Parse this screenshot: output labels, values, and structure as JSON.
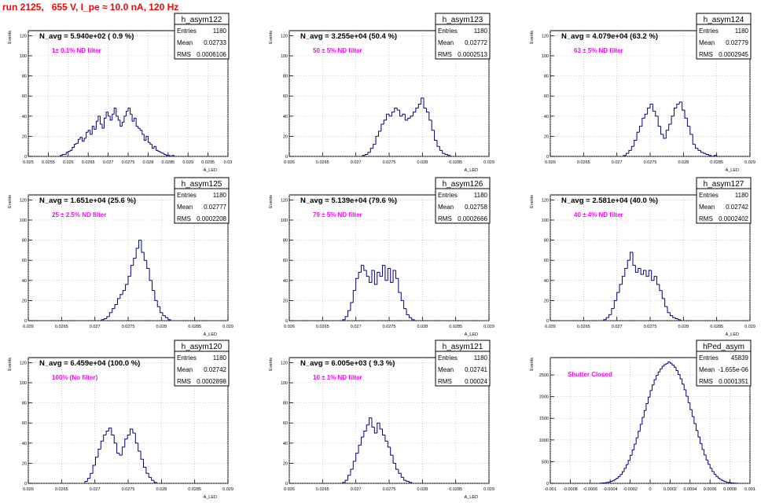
{
  "header": {
    "run_title": "run 2125,   655 V, I_pe ≈ 10.0 nA, 120 Hz",
    "title_color": "#ff0000"
  },
  "colors": {
    "histogram": "#000080",
    "annotation": "#ff00ff",
    "title": "#ff0000",
    "grid": "#b0b0b0"
  },
  "chart_data": [
    {
      "type": "bar",
      "name": "h_asym122",
      "title": "N_avg = 5.940e+02 ( 0.9 %)",
      "annotation": "1± 0.1% ND filter",
      "stats": {
        "Entries": "1180",
        "Mean": "0.02733",
        "RMS": "0.0006106"
      },
      "ylabel": "Events",
      "xlabel": "A_LED",
      "xlim": [
        0.025,
        0.03
      ],
      "ylim": [
        0,
        125
      ],
      "xticks": [
        0.025,
        0.0255,
        0.026,
        0.0265,
        0.027,
        0.0275,
        0.028,
        0.0285,
        0.029,
        0.0295,
        0.03
      ],
      "xtick_labels": [
        "0.025",
        "0.0255",
        "0.026",
        "0.0265",
        "0.027",
        "0.0275",
        "0.028",
        "0.0285",
        "0.029",
        "0.0295",
        "0.03"
      ],
      "yticks": [
        0,
        20,
        40,
        60,
        80,
        100,
        120
      ],
      "hist": {
        "min": 0.0258,
        "bin_width": 5e-05,
        "values": [
          1,
          2,
          2,
          4,
          5,
          6,
          9,
          12,
          13,
          17,
          19,
          15,
          18,
          24,
          26,
          22,
          30,
          27,
          35,
          40,
          32,
          28,
          38,
          44,
          40,
          36,
          42,
          48,
          40,
          36,
          30,
          34,
          40,
          45,
          48,
          42,
          35,
          38,
          30,
          28,
          26,
          22,
          16,
          20,
          14,
          12,
          8,
          10,
          6,
          5,
          4,
          3,
          2,
          1,
          1,
          0,
          1
        ]
      }
    },
    {
      "type": "bar",
      "name": "h_asym123",
      "title": "N_avg = 3.255e+04 (50.4 %)",
      "annotation": "50 ± 5% ND filter",
      "stats": {
        "Entries": "1180",
        "Mean": "0.02772",
        "RMS": "0.0002513"
      },
      "ylabel": "Events",
      "xlabel": "A_LED",
      "xlim": [
        0.026,
        0.029
      ],
      "ylim": [
        0,
        125
      ],
      "xticks": [
        0.026,
        0.0265,
        0.027,
        0.0275,
        0.028,
        0.0285,
        0.029
      ],
      "xtick_labels": [
        "0.026",
        "0.0265",
        "0.027",
        "0.0275",
        "0.028",
        "0.0285",
        "0.029"
      ],
      "yticks": [
        0,
        20,
        40,
        60,
        80,
        100,
        120
      ],
      "hist": {
        "min": 0.0271,
        "bin_width": 4e-05,
        "values": [
          1,
          2,
          4,
          8,
          12,
          20,
          25,
          32,
          36,
          42,
          40,
          44,
          48,
          46,
          40,
          42,
          36,
          38,
          40,
          44,
          48,
          52,
          58,
          48,
          44,
          36,
          26,
          16,
          10,
          6,
          3,
          2,
          1
        ]
      }
    },
    {
      "type": "bar",
      "name": "h_asym124",
      "title": "N_avg = 4.079e+04 (63.2 %)",
      "annotation": "63 ± 5% ND filter",
      "stats": {
        "Entries": "1180",
        "Mean": "0.02779",
        "RMS": "0.0002945"
      },
      "ylabel": "Events",
      "xlabel": "A_LED",
      "xlim": [
        0.026,
        0.029
      ],
      "ylim": [
        0,
        125
      ],
      "xticks": [
        0.026,
        0.0265,
        0.027,
        0.0275,
        0.028,
        0.0285,
        0.029
      ],
      "xtick_labels": [
        "0.026",
        "0.0265",
        "0.027",
        "0.0275",
        "0.028",
        "0.0285",
        "0.029"
      ],
      "yticks": [
        0,
        20,
        40,
        60,
        80,
        100,
        120
      ],
      "hist": {
        "min": 0.0271,
        "bin_width": 4e-05,
        "values": [
          1,
          3,
          6,
          10,
          16,
          24,
          30,
          38,
          42,
          48,
          52,
          45,
          40,
          30,
          22,
          18,
          26,
          32,
          40,
          48,
          52,
          54,
          46,
          38,
          30,
          22,
          12,
          8,
          6,
          4,
          3,
          2,
          1,
          0,
          1
        ]
      }
    },
    {
      "type": "bar",
      "name": "h_asym125",
      "title": "N_avg = 1.651e+04 (25.6 %)",
      "annotation": "25 ± 2.5% ND filter",
      "stats": {
        "Entries": "1180",
        "Mean": "0.02777",
        "RMS": "0.0002208"
      },
      "ylabel": "Events",
      "xlabel": "A_LED",
      "xlim": [
        0.026,
        0.029
      ],
      "ylim": [
        0,
        125
      ],
      "xticks": [
        0.026,
        0.0265,
        0.027,
        0.0275,
        0.028,
        0.0285,
        0.029
      ],
      "xtick_labels": [
        "0.026",
        "0.0265",
        "0.027",
        "0.0275",
        "0.028",
        "0.0285",
        "0.029"
      ],
      "yticks": [
        0,
        20,
        40,
        60,
        80,
        100,
        120
      ],
      "hist": {
        "min": 0.0271,
        "bin_width": 4e-05,
        "values": [
          1,
          2,
          4,
          8,
          12,
          16,
          22,
          26,
          30,
          36,
          44,
          55,
          62,
          72,
          80,
          68,
          60,
          52,
          40,
          30,
          20,
          14,
          8,
          5,
          3,
          1
        ]
      }
    },
    {
      "type": "bar",
      "name": "h_asym126",
      "title": "N_avg = 5.139e+04 (79.6 %)",
      "annotation": "79 ± 5% ND filter",
      "stats": {
        "Entries": "1180",
        "Mean": "0.02758",
        "RMS": "0.0002666"
      },
      "ylabel": "Events",
      "xlabel": "A_LED",
      "xlim": [
        0.026,
        0.029
      ],
      "ylim": [
        0,
        125
      ],
      "xticks": [
        0.026,
        0.0265,
        0.027,
        0.0275,
        0.028,
        0.0285,
        0.029
      ],
      "xtick_labels": [
        "0.026",
        "0.0265",
        "0.027",
        "0.0275",
        "0.028",
        "0.0285",
        "0.029"
      ],
      "yticks": [
        0,
        20,
        40,
        60,
        80,
        100,
        120
      ],
      "hist": {
        "min": 0.0268,
        "bin_width": 4e-05,
        "values": [
          1,
          4,
          10,
          18,
          30,
          42,
          48,
          55,
          50,
          44,
          38,
          50,
          36,
          48,
          44,
          55,
          40,
          52,
          38,
          50,
          42,
          28,
          20,
          12,
          6,
          3,
          1
        ]
      }
    },
    {
      "type": "bar",
      "name": "h_asym127",
      "title": "N_avg = 2.581e+04 (40.0 %)",
      "annotation": "40 ± 4% ND filter",
      "stats": {
        "Entries": "1180",
        "Mean": "0.02742",
        "RMS": "0.0002402"
      },
      "ylabel": "Events",
      "xlabel": "A_LED",
      "xlim": [
        0.026,
        0.029
      ],
      "ylim": [
        0,
        125
      ],
      "xticks": [
        0.026,
        0.0265,
        0.027,
        0.0275,
        0.028,
        0.0285,
        0.029
      ],
      "xtick_labels": [
        "0.026",
        "0.0265",
        "0.027",
        "0.0275",
        "0.028",
        "0.0285",
        "0.029"
      ],
      "yticks": [
        0,
        20,
        40,
        60,
        80,
        100,
        120
      ],
      "hist": {
        "min": 0.0268,
        "bin_width": 4e-05,
        "values": [
          1,
          3,
          6,
          12,
          20,
          28,
          36,
          44,
          52,
          60,
          68,
          55,
          48,
          52,
          46,
          50,
          44,
          50,
          40,
          44,
          36,
          30,
          22,
          14,
          8,
          5,
          3,
          2,
          1
        ]
      }
    },
    {
      "type": "bar",
      "name": "h_asym120",
      "title": "N_avg = 6.459e+04 (100.0 %)",
      "annotation": "100% (No filter)",
      "stats": {
        "Entries": "1180",
        "Mean": "0.02742",
        "RMS": "0.0002898"
      },
      "ylabel": "Events",
      "xlabel": "A_LED",
      "xlim": [
        0.026,
        0.029
      ],
      "ylim": [
        0,
        125
      ],
      "xticks": [
        0.026,
        0.0265,
        0.027,
        0.0275,
        0.028,
        0.0285,
        0.029
      ],
      "xtick_labels": [
        "0.026",
        "0.0265",
        "0.027",
        "0.0275",
        "0.028",
        "0.0285",
        "0.029"
      ],
      "yticks": [
        0,
        20,
        40,
        60,
        80,
        100,
        120
      ],
      "hist": {
        "min": 0.02685,
        "bin_width": 4e-05,
        "values": [
          2,
          5,
          10,
          18,
          26,
          34,
          42,
          48,
          52,
          55,
          48,
          40,
          30,
          28,
          36,
          44,
          48,
          54,
          50,
          40,
          32,
          24,
          16,
          10,
          6,
          3,
          1
        ]
      }
    },
    {
      "type": "bar",
      "name": "h_asym121",
      "title": "N_avg = 6.005e+03 ( 9.3 %)",
      "annotation": "10 ± 1% ND filter",
      "stats": {
        "Entries": "1180",
        "Mean": "0.02741",
        "RMS": "0.00024"
      },
      "ylabel": "Events",
      "xlabel": "A_LED",
      "xlim": [
        0.026,
        0.029
      ],
      "ylim": [
        0,
        125
      ],
      "xticks": [
        0.026,
        0.0265,
        0.027,
        0.0275,
        0.028,
        0.0285,
        0.029
      ],
      "xtick_labels": [
        "0.026",
        "0.0265",
        "0.027",
        "0.0275",
        "0.028",
        "0.0285",
        "0.029"
      ],
      "yticks": [
        0,
        20,
        40,
        60,
        80,
        100,
        120
      ],
      "hist": {
        "min": 0.0268,
        "bin_width": 4e-05,
        "values": [
          1,
          3,
          8,
          14,
          22,
          30,
          38,
          46,
          52,
          58,
          65,
          56,
          50,
          60,
          54,
          48,
          42,
          36,
          28,
          20,
          14,
          10,
          6,
          3,
          2,
          1
        ]
      }
    },
    {
      "type": "bar",
      "name": "hPed_asym",
      "title": "",
      "annotation": "Shutter Closed",
      "stats": {
        "Entries": "45839",
        "Mean": "-1.655e-06",
        "RMS": "0.0001351"
      },
      "ylabel": "Events",
      "xlabel": "",
      "xlim": [
        -0.001,
        0.001
      ],
      "ylim": [
        0,
        2900
      ],
      "xticks": [
        -0.001,
        -0.0008,
        -0.0006,
        -0.0004,
        -0.0002,
        0,
        0.0002,
        0.0004,
        0.0006,
        0.0008,
        0.001
      ],
      "xtick_labels": [
        "-0.001",
        "-0.0008",
        "-0.0006",
        "-0.0004",
        "-0.0002",
        "0",
        "0.0002",
        "0.0004",
        "0.0006",
        "0.0008",
        "0.001"
      ],
      "yticks": [
        0,
        500,
        1000,
        1500,
        2000,
        2500
      ],
      "hist": {
        "min": -0.0005,
        "bin_width": 2e-05,
        "values": [
          5,
          8,
          12,
          20,
          30,
          45,
          60,
          85,
          115,
          155,
          205,
          270,
          345,
          430,
          530,
          645,
          770,
          905,
          1050,
          1200,
          1360,
          1520,
          1680,
          1840,
          1990,
          2140,
          2270,
          2390,
          2490,
          2570,
          2640,
          2700,
          2740,
          2760,
          2800,
          2770,
          2730,
          2680,
          2600,
          2510,
          2410,
          2290,
          2160,
          2010,
          1860,
          1700,
          1540,
          1380,
          1220,
          1070,
          920,
          780,
          655,
          540,
          440,
          350,
          275,
          210,
          160,
          120,
          88,
          62,
          44,
          30,
          20,
          13,
          8,
          5,
          3
        ]
      }
    }
  ]
}
